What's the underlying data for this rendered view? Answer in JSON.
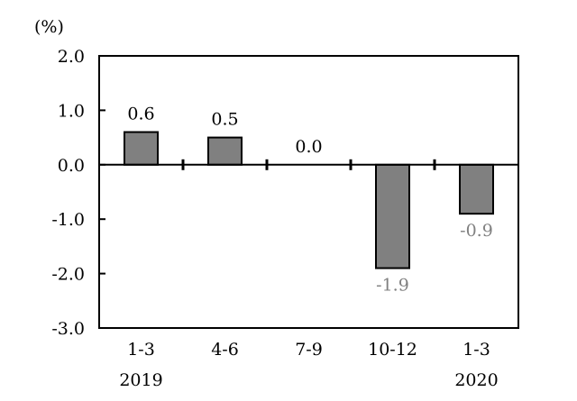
{
  "chart_data": {
    "type": "bar",
    "unit_label": "(%)",
    "categories": [
      "1-3",
      "4-6",
      "7-9",
      "10-12",
      "1-3"
    ],
    "year_labels": [
      "2019",
      "",
      "",
      "",
      "2020"
    ],
    "values": [
      0.6,
      0.5,
      0.0,
      -1.9,
      -0.9
    ],
    "data_labels": [
      "0.6",
      "0.5",
      "0.0",
      "-1.9",
      "-0.9"
    ],
    "y_ticks": [
      "2.0",
      "1.0",
      "0.0",
      "-1.0",
      "-2.0",
      "-3.0"
    ],
    "ylim": [
      -3.0,
      2.0
    ],
    "grid": false,
    "bar_color": "#808080",
    "positive_label_color": "#000000",
    "negative_label_color": "#808080"
  }
}
